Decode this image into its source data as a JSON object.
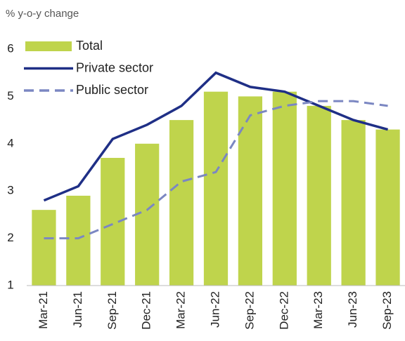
{
  "chart_data": {
    "type": "bar",
    "y_axis_label": "% y-o-y change",
    "categories": [
      "Mar-21",
      "Jun-21",
      "Sep-21",
      "Dec-21",
      "Mar-22",
      "Jun-22",
      "Sep-22",
      "Dec-22",
      "Mar-23",
      "Jun-23",
      "Sep-23"
    ],
    "series": [
      {
        "name": "Total",
        "type": "bar",
        "color": "#bfd44c",
        "values": [
          2.6,
          2.9,
          3.7,
          4.0,
          4.5,
          5.1,
          5.0,
          5.1,
          4.8,
          4.5,
          4.3
        ]
      },
      {
        "name": "Private sector",
        "type": "line",
        "color": "#1f2f86",
        "values": [
          2.8,
          3.1,
          4.1,
          4.4,
          4.8,
          5.5,
          5.2,
          5.1,
          4.8,
          4.5,
          4.3
        ]
      },
      {
        "name": "Public sector",
        "type": "dashed-line",
        "color": "#7b87c2",
        "values": [
          2.0,
          2.0,
          2.3,
          2.6,
          3.2,
          3.4,
          4.6,
          4.8,
          4.9,
          4.9,
          4.8
        ]
      }
    ],
    "ylim": [
      1,
      6
    ],
    "yticks": [
      1,
      2,
      3,
      4,
      5,
      6
    ],
    "grid": false,
    "legend": "top-left"
  }
}
